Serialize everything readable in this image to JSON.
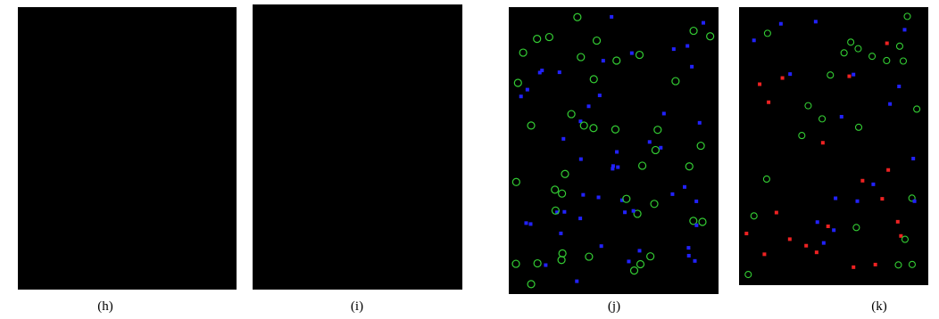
{
  "panels": [
    {
      "label": "(h)"
    },
    {
      "label": "(i)"
    },
    {
      "label": "(j)"
    },
    {
      "label": "(k)"
    }
  ]
}
